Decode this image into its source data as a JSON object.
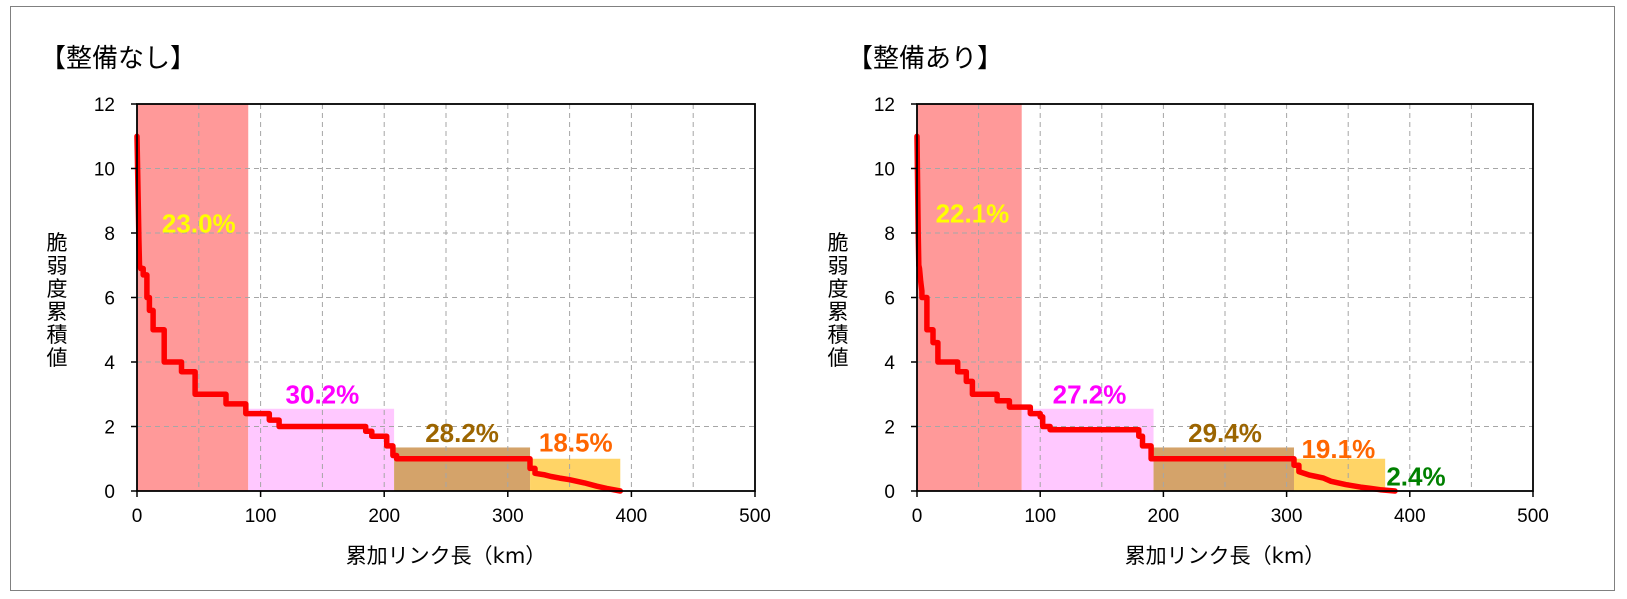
{
  "chart_data": [
    {
      "type": "area",
      "title": "【整備なし】",
      "xlabel": "累加リンク長（km）",
      "ylabel": "脆弱度累積値",
      "xlim": [
        0,
        500
      ],
      "ylim": [
        0,
        12
      ],
      "xticks": [
        "0",
        "100",
        "200",
        "300",
        "400",
        "500"
      ],
      "yticks": [
        "0",
        "2",
        "4",
        "6",
        "8",
        "10",
        "12"
      ],
      "grid": true,
      "bands": [
        {
          "x0": 0,
          "x1": 90,
          "height": 12,
          "label": "23.0%",
          "fill": "#ff9999",
          "label_color": "#ffff00",
          "label_x": 50,
          "label_y": 8.3
        },
        {
          "x0": 90,
          "x1": 208,
          "height": 2.55,
          "label": "30.2%",
          "fill": "#ffc8ff",
          "label_color": "#ff00ff",
          "label_x": 150,
          "label_y": 3.0
        },
        {
          "x0": 208,
          "x1": 318,
          "height": 1.35,
          "label": "28.2%",
          "fill": "#d4a36a",
          "label_color": "#9c6500",
          "label_x": 263,
          "label_y": 1.8
        },
        {
          "x0": 318,
          "x1": 391,
          "height": 1.0,
          "label": "18.5%",
          "fill": "#ffd466",
          "label_color": "#ff6600",
          "label_x": 355,
          "label_y": 1.5
        }
      ],
      "series": [
        {
          "x": [
            0,
            1,
            1.5,
            2,
            3,
            4,
            5,
            5,
            8,
            8,
            10,
            10,
            13,
            13,
            22,
            22,
            36,
            36,
            47,
            47,
            72,
            72,
            88,
            88,
            107,
            107,
            115,
            115,
            185,
            185,
            190,
            190,
            202,
            202,
            207,
            207,
            210,
            210,
            318,
            318,
            322,
            322,
            330,
            335,
            342,
            350,
            362,
            372,
            380,
            391
          ],
          "y": [
            11,
            9,
            7.8,
            7,
            6.9,
            6.9,
            6.9,
            6.7,
            6.7,
            6.0,
            6.0,
            5.6,
            5.6,
            5.0,
            5.0,
            4.0,
            4.0,
            3.7,
            3.7,
            3.0,
            3.0,
            2.7,
            2.7,
            2.4,
            2.4,
            2.2,
            2.2,
            2.0,
            2.0,
            1.85,
            1.85,
            1.7,
            1.7,
            1.4,
            1.4,
            1.1,
            1.1,
            1.0,
            1.0,
            0.7,
            0.7,
            0.55,
            0.5,
            0.45,
            0.4,
            0.35,
            0.25,
            0.15,
            0.08,
            0.0
          ]
        }
      ]
    },
    {
      "type": "area",
      "title": "【整備あり】",
      "xlabel": "累加リンク長（km）",
      "ylabel": "脆弱度累積値",
      "xlim": [
        0,
        500
      ],
      "ylim": [
        0,
        12
      ],
      "xticks": [
        "0",
        "100",
        "200",
        "300",
        "400",
        "500"
      ],
      "yticks": [
        "0",
        "2",
        "4",
        "6",
        "8",
        "10",
        "12"
      ],
      "grid": true,
      "bands": [
        {
          "x0": 0,
          "x1": 85,
          "height": 12,
          "label": "22.1%",
          "fill": "#ff9999",
          "label_color": "#ffff00",
          "label_x": 45,
          "label_y": 8.6
        },
        {
          "x0": 85,
          "x1": 192,
          "height": 2.55,
          "label": "27.2%",
          "fill": "#ffc8ff",
          "label_color": "#ff00ff",
          "label_x": 140,
          "label_y": 3.0
        },
        {
          "x0": 192,
          "x1": 306,
          "height": 1.35,
          "label": "29.4%",
          "fill": "#d4a36a",
          "label_color": "#9c6500",
          "label_x": 250,
          "label_y": 1.8
        },
        {
          "x0": 306,
          "x1": 380,
          "height": 1.0,
          "label": "19.1%",
          "fill": "#ffd466",
          "label_color": "#ff6600",
          "label_x": 342,
          "label_y": 1.3
        },
        {
          "x0": 380,
          "x1": 388,
          "height": 0,
          "label": "2.4%",
          "fill": "#ffffff",
          "label_color": "#008000",
          "label_x": 405,
          "label_y": 0.45
        }
      ],
      "series": [
        {
          "x": [
            0,
            1,
            1.5,
            2,
            3,
            4,
            4,
            8,
            8,
            13,
            13,
            17,
            17,
            33,
            33,
            40,
            40,
            45,
            45,
            65,
            65,
            75,
            75,
            92,
            92,
            100,
            100,
            102,
            102,
            108,
            108,
            180,
            180,
            183,
            183,
            190,
            190,
            306,
            306,
            310,
            310,
            318,
            324,
            330,
            336,
            348,
            360,
            368,
            376,
            388
          ],
          "y": [
            11,
            8,
            7,
            6.9,
            6.5,
            6.2,
            6.0,
            6.0,
            5.0,
            5.0,
            4.6,
            4.6,
            4.0,
            4.0,
            3.7,
            3.7,
            3.4,
            3.4,
            3.0,
            3.0,
            2.8,
            2.8,
            2.6,
            2.6,
            2.4,
            2.4,
            2.3,
            2.3,
            2.0,
            2.0,
            1.9,
            1.9,
            1.7,
            1.7,
            1.4,
            1.4,
            1.0,
            1.0,
            0.8,
            0.8,
            0.6,
            0.5,
            0.45,
            0.4,
            0.3,
            0.2,
            0.12,
            0.08,
            0.04,
            0.0
          ]
        }
      ]
    }
  ]
}
